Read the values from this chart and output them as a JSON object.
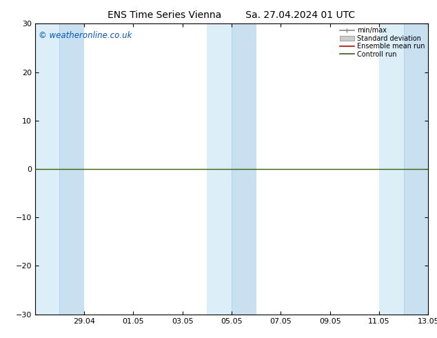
{
  "title_left": "ENS Time Series Vienna",
  "title_right": "Sa. 27.04.2024 01 UTC",
  "title_fontsize": 10,
  "ylim": [
    -30,
    30
  ],
  "yticks": [
    -30,
    -20,
    -10,
    0,
    10,
    20,
    30
  ],
  "xtick_labels": [
    "29.04",
    "01.05",
    "03.05",
    "05.05",
    "07.05",
    "09.05",
    "11.05",
    "13.05"
  ],
  "xtick_positions": [
    2,
    4,
    6,
    8,
    10,
    12,
    14,
    16
  ],
  "xlim": [
    0,
    16
  ],
  "watermark": "© weatheronline.co.uk",
  "watermark_color": "#0055cc",
  "bg_color": "#ffffff",
  "plot_bg_color": "#ffffff",
  "band_light": "#dceef8",
  "band_dark": "#c8e0f0",
  "zero_line_color": "#336600",
  "red_line_color": "#cc0000",
  "legend_entries": [
    "min/max",
    "Standard deviation",
    "Ensemble mean run",
    "Controll run"
  ],
  "legend_minmax_color": "#888888",
  "legend_std_color": "#cccccc",
  "tick_fontsize": 8,
  "watermark_fontsize": 8.5,
  "weekend_bands": [
    {
      "light": [
        0.0,
        1.0
      ],
      "dark": [
        1.0,
        2.0
      ]
    },
    {
      "light": [
        7.0,
        8.0
      ],
      "dark": [
        8.0,
        9.0
      ]
    },
    {
      "light": [
        14.0,
        15.0
      ],
      "dark": [
        15.0,
        16.0
      ]
    }
  ]
}
